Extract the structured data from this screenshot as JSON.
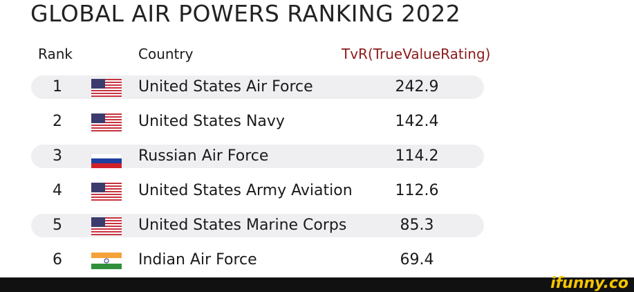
{
  "title": "GLOBAL AIR POWERS RANKING 2022",
  "table": {
    "columns": [
      "Rank",
      "Country",
      "TvR(TrueValueRating)"
    ],
    "rows": [
      [
        1,
        "United States Air Force",
        242.9
      ],
      [
        2,
        "United States Navy",
        142.4
      ],
      [
        3,
        "Russian Air Force",
        114.2
      ],
      [
        4,
        "United States Army Aviation",
        112.6
      ],
      [
        5,
        "United States Marine Corps",
        85.3
      ],
      [
        6,
        "Indian Air Force",
        69.4
      ]
    ]
  },
  "watermark": "ifunny.co"
}
